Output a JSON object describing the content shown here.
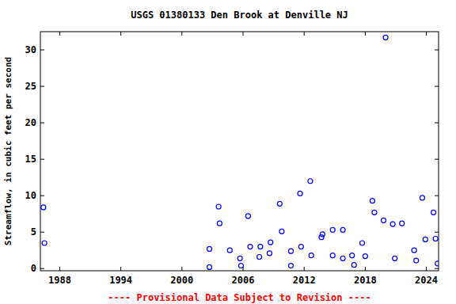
{
  "chart_data": {
    "type": "scatter",
    "title": "USGS 01380133 Den Brook at Denville NJ",
    "y_label": "Streamflow, in cubic feet per second",
    "annotation": "---- Provisional Data Subject to Revision ----",
    "x": [
      1986.4,
      1986.5,
      2002.7,
      2002.7,
      2003.6,
      2003.7,
      2004.7,
      2005.7,
      2005.8,
      2006.5,
      2006.7,
      2007.6,
      2007.7,
      2008.6,
      2008.7,
      2009.6,
      2009.8,
      2010.7,
      2010.7,
      2011.6,
      2011.7,
      2012.6,
      2012.7,
      2013.7,
      2013.8,
      2014.8,
      2014.8,
      2015.8,
      2015.8,
      2016.7,
      2016.9,
      2017.7,
      2018.0,
      2018.7,
      2018.9,
      2019.8,
      2020.0,
      2020.7,
      2020.9,
      2021.6,
      2022.8,
      2023.0,
      2023.6,
      2023.9,
      2024.7,
      2024.9,
      2025.1
    ],
    "values": [
      8.4,
      3.5,
      0.2,
      2.7,
      8.5,
      6.2,
      2.5,
      1.4,
      0.4,
      7.2,
      3.0,
      1.6,
      3.0,
      2.1,
      3.6,
      8.9,
      5.1,
      2.4,
      0.4,
      10.3,
      3.0,
      12.0,
      1.8,
      4.3,
      4.7,
      5.3,
      1.8,
      5.3,
      1.4,
      1.8,
      0.5,
      3.5,
      1.7,
      9.3,
      7.7,
      6.6,
      31.7,
      6.1,
      1.4,
      6.2,
      2.5,
      1.1,
      9.7,
      4.0,
      7.7,
      4.1,
      0.7
    ],
    "color": "#0000ff",
    "marker": "circle-open",
    "xlim": [
      1986.1,
      2025.2
    ],
    "xticks": [
      1988,
      1994,
      2000,
      2006,
      2012,
      2018,
      2024
    ],
    "ylim": [
      -0.3,
      32.5
    ],
    "yticks": [
      0,
      5,
      10,
      15,
      20,
      25,
      30
    ],
    "grid": false
  }
}
